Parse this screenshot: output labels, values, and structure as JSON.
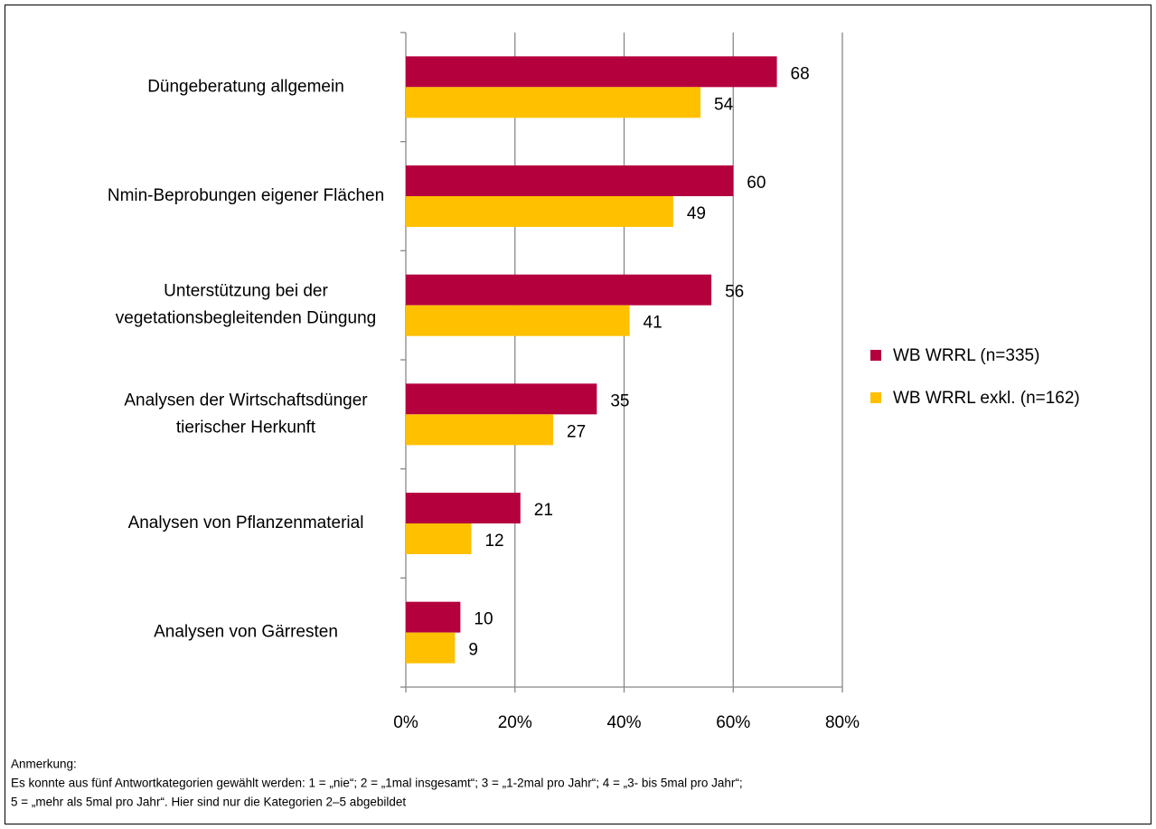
{
  "chart_data": {
    "type": "hbar",
    "categories": [
      "Düngeberatung allgemein",
      "Nmin-Beprobungen eigener Flächen",
      "Unterstützung bei der vegetationsbegleitenden Düngung",
      "Analysen der Wirtschaftsdünger tierischer Herkunft",
      "Analysen von Pflanzenmaterial",
      "Analysen von Gärresten"
    ],
    "series": [
      {
        "name": "WB WRRL (n=335)",
        "color": "#b5003e",
        "values": [
          68,
          60,
          56,
          35,
          21,
          10
        ]
      },
      {
        "name": "WB WRRL exkl. (n=162)",
        "color": "#ffc000",
        "values": [
          54,
          49,
          41,
          27,
          12,
          9
        ]
      }
    ],
    "xlim": [
      0,
      80
    ],
    "xticks": [
      {
        "value": 0,
        "label": "0%"
      },
      {
        "value": 20,
        "label": "20%"
      },
      {
        "value": 40,
        "label": "40%"
      },
      {
        "value": 60,
        "label": "60%"
      },
      {
        "value": 80,
        "label": "80%"
      }
    ],
    "grid": true,
    "legend": "right",
    "note": [
      "Anmerkung:",
      "Es konnte aus fünf Antwortkategorien gewählt werden: 1 = „nie“; 2 = „1mal insgesamt“;  3 = „1-2mal pro Jahr“; 4 = „3- bis 5mal pro Jahr“;",
      "5 = „mehr als 5mal pro Jahr“. Hier sind nur die Kategorien 2–5 abgebildet"
    ]
  }
}
